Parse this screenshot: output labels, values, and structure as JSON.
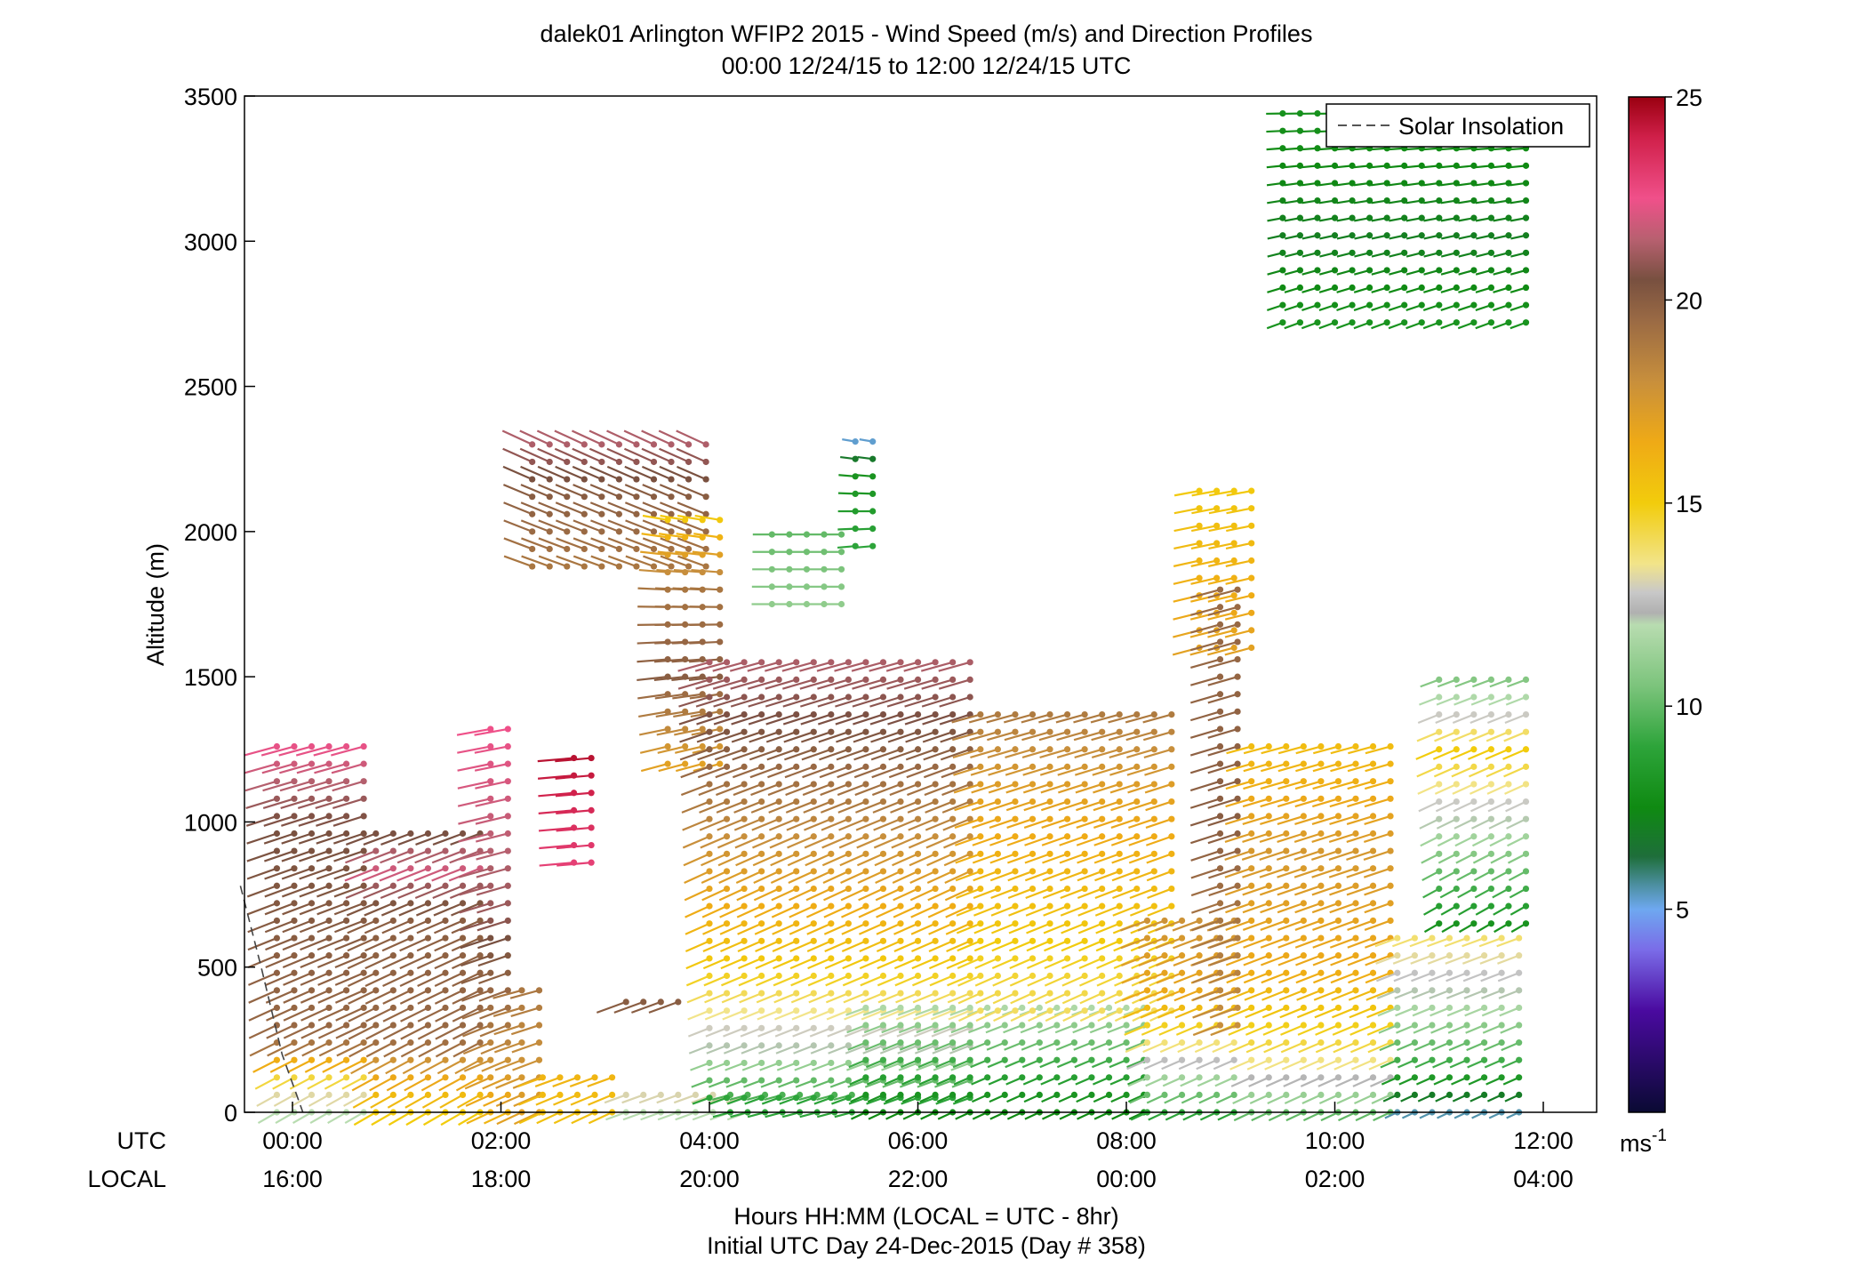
{
  "chart_data": {
    "type": "wind_barb_profile",
    "title": "dalek01 Arlington WFIP2 2015 - Wind Speed (m/s) and Direction Profiles",
    "subtitle": "00:00 12/24/15 to 12:00 12/24/15  UTC",
    "ylabel": "Altitude (m)",
    "xlabel": "Hours HH:MM  (LOCAL = UTC - 8hr)",
    "xlabel2": "Initial UTC Day 24-Dec-2015 (Day # 358)",
    "row_labels": {
      "utc": "UTC",
      "local": "LOCAL"
    },
    "xlim_hours_utc": [
      -0.5,
      12.5
    ],
    "ylim": [
      0,
      3500
    ],
    "y_ticks": [
      {
        "value": 0,
        "label": "0"
      },
      {
        "value": 500,
        "label": "500"
      },
      {
        "value": 1000,
        "label": "1000"
      },
      {
        "value": 1500,
        "label": "1500"
      },
      {
        "value": 2000,
        "label": "2000"
      },
      {
        "value": 2500,
        "label": "2500"
      },
      {
        "value": 3000,
        "label": "3000"
      },
      {
        "value": 3500,
        "label": "3500"
      }
    ],
    "x_ticks": [
      {
        "hour": 0,
        "utc": "00:00",
        "local": "16:00"
      },
      {
        "hour": 2,
        "utc": "02:00",
        "local": "18:00"
      },
      {
        "hour": 4,
        "utc": "04:00",
        "local": "20:00"
      },
      {
        "hour": 6,
        "utc": "06:00",
        "local": "22:00"
      },
      {
        "hour": 8,
        "utc": "08:00",
        "local": "00:00"
      },
      {
        "hour": 10,
        "utc": "10:00",
        "local": "02:00"
      },
      {
        "hour": 12,
        "utc": "12:00",
        "local": "04:00"
      }
    ],
    "legend": {
      "label": "Solar Insolation",
      "position": "top-right"
    },
    "solar_insolation_line": [
      {
        "hour": -0.5,
        "alt": 780
      },
      {
        "hour": -0.3,
        "alt": 500
      },
      {
        "hour": -0.1,
        "alt": 200
      },
      {
        "hour": 0.1,
        "alt": 0
      }
    ],
    "colorbar": {
      "unit": "ms",
      "unit_exponent": "-1",
      "ticks": [
        5,
        10,
        15,
        20,
        25
      ],
      "range": [
        0,
        25
      ],
      "stops": [
        {
          "v": 0,
          "color": "#0a0a33"
        },
        {
          "v": 2.5,
          "color": "#4a0aa0"
        },
        {
          "v": 4,
          "color": "#7a6ce8"
        },
        {
          "v": 5,
          "color": "#6ea8f0"
        },
        {
          "v": 5.6,
          "color": "#4c8fa0"
        },
        {
          "v": 6.3,
          "color": "#1e6e3a"
        },
        {
          "v": 7.5,
          "color": "#0f8a12"
        },
        {
          "v": 9,
          "color": "#2da43a"
        },
        {
          "v": 10.5,
          "color": "#7cc47c"
        },
        {
          "v": 12,
          "color": "#b8dcb0"
        },
        {
          "v": 12.3,
          "color": "#b0b0b0"
        },
        {
          "v": 12.8,
          "color": "#c8c8c8"
        },
        {
          "v": 13.5,
          "color": "#f2e48a"
        },
        {
          "v": 15,
          "color": "#f2cc0c"
        },
        {
          "v": 16.5,
          "color": "#efaa16"
        },
        {
          "v": 18,
          "color": "#c88f3c"
        },
        {
          "v": 19.5,
          "color": "#9a6a44"
        },
        {
          "v": 20.5,
          "color": "#785040"
        },
        {
          "v": 21.5,
          "color": "#b86070"
        },
        {
          "v": 22.5,
          "color": "#f0508a"
        },
        {
          "v": 24,
          "color": "#d0204a"
        },
        {
          "v": 25,
          "color": "#9a0010"
        }
      ]
    },
    "time_step_hours": 0.1667,
    "alt_step_m": 60,
    "profiles": [
      {
        "t0": -0.15,
        "t1": 0.8,
        "a0": 0,
        "a1": 1280,
        "speed": [
          [
            0,
            12
          ],
          [
            150,
            15
          ],
          [
            250,
            19.5
          ],
          [
            600,
            20
          ],
          [
            1000,
            20.5
          ],
          [
            1150,
            21.5
          ],
          [
            1280,
            22.5
          ]
        ],
        "dir": [
          [
            0,
            240
          ],
          [
            300,
            245
          ],
          [
            1280,
            255
          ]
        ]
      },
      {
        "t0": 0.8,
        "t1": 1.9,
        "a0": 0,
        "a1": 1000,
        "speed": [
          [
            0,
            15
          ],
          [
            150,
            17
          ],
          [
            250,
            19.5
          ],
          [
            700,
            20
          ],
          [
            850,
            22
          ],
          [
            1000,
            20
          ]
        ],
        "dir": [
          [
            0,
            240
          ],
          [
            1000,
            250
          ]
        ]
      },
      {
        "t0": 1.9,
        "t1": 2.1,
        "a0": 0,
        "a1": 1330,
        "speed": [
          [
            0,
            16
          ],
          [
            300,
            19
          ],
          [
            700,
            21
          ],
          [
            1330,
            22.5
          ]
        ],
        "dir": [
          [
            0,
            245
          ],
          [
            1330,
            260
          ]
        ]
      },
      {
        "t0": 2.2,
        "t1": 2.4,
        "a0": 0,
        "a1": 430,
        "speed": [
          [
            0,
            17
          ],
          [
            430,
            19
          ]
        ],
        "dir": [
          [
            0,
            245
          ],
          [
            430,
            255
          ]
        ]
      },
      {
        "t0": 2.4,
        "t1": 3.2,
        "a0": 0,
        "a1": 120,
        "speed": [
          [
            0,
            15.5
          ],
          [
            120,
            16
          ]
        ],
        "dir": [
          [
            0,
            245
          ],
          [
            120,
            250
          ]
        ]
      },
      {
        "t0": 2.7,
        "t1": 2.9,
        "a0": 860,
        "a1": 1240,
        "speed": [
          [
            860,
            23
          ],
          [
            1240,
            24.5
          ]
        ],
        "dir": [
          [
            860,
            265
          ],
          [
            1240,
            265
          ]
        ]
      },
      {
        "t0": 2.3,
        "t1": 4.0,
        "a0": 1880,
        "a1": 2320,
        "speed": [
          [
            1880,
            19
          ],
          [
            2120,
            20
          ],
          [
            2320,
            21.5
          ]
        ],
        "dir": [
          [
            1880,
            290
          ],
          [
            2320,
            295
          ]
        ]
      },
      {
        "t0": 3.2,
        "t1": 3.8,
        "a0": 380,
        "a1": 430,
        "speed": [
          [
            380,
            20
          ],
          [
            430,
            19
          ]
        ],
        "dir": [
          [
            380,
            250
          ],
          [
            430,
            255
          ]
        ]
      },
      {
        "t0": 3.2,
        "t1": 4.5,
        "a0": 0,
        "a1": 110,
        "speed": [
          [
            0,
            12
          ],
          [
            110,
            14
          ]
        ],
        "dir": [
          [
            0,
            250
          ],
          [
            110,
            250
          ]
        ]
      },
      {
        "t0": 3.6,
        "t1": 4.2,
        "a0": 1200,
        "a1": 2050,
        "speed": [
          [
            1200,
            17
          ],
          [
            1500,
            20
          ],
          [
            1800,
            19
          ],
          [
            2050,
            15
          ]
        ],
        "dir": [
          [
            1200,
            255
          ],
          [
            2050,
            280
          ]
        ]
      },
      {
        "t0": 4.2,
        "t1": 5.5,
        "a0": 0,
        "a1": 100,
        "speed": [
          [
            0,
            9
          ],
          [
            100,
            10
          ]
        ],
        "dir": [
          [
            0,
            255
          ],
          [
            100,
            255
          ]
        ]
      },
      {
        "t0": 4.0,
        "t1": 6.6,
        "a0": 50,
        "a1": 1600,
        "speed": [
          [
            50,
            9
          ],
          [
            250,
            12.5
          ],
          [
            500,
            15
          ],
          [
            800,
            17
          ],
          [
            1100,
            19
          ],
          [
            1350,
            20.5
          ],
          [
            1600,
            21.5
          ]
        ],
        "dir": [
          [
            50,
            250
          ],
          [
            800,
            245
          ],
          [
            1600,
            255
          ]
        ]
      },
      {
        "t0": 4.6,
        "t1": 5.4,
        "a0": 1750,
        "a1": 2000,
        "speed": [
          [
            1750,
            11
          ],
          [
            2000,
            10
          ]
        ],
        "dir": [
          [
            1750,
            270
          ],
          [
            2000,
            270
          ]
        ]
      },
      {
        "t0": 5.4,
        "t1": 5.7,
        "a0": 1950,
        "a1": 2320,
        "speed": [
          [
            1950,
            9
          ],
          [
            2200,
            8
          ],
          [
            2320,
            5
          ]
        ],
        "dir": [
          [
            1950,
            265
          ],
          [
            2320,
            280
          ]
        ]
      },
      {
        "t0": 5.5,
        "t1": 8.2,
        "a0": 0,
        "a1": 380,
        "speed": [
          [
            0,
            7.5
          ],
          [
            150,
            9
          ],
          [
            380,
            12
          ]
        ],
        "dir": [
          [
            0,
            245
          ],
          [
            380,
            250
          ]
        ]
      },
      {
        "t0": 6.6,
        "t1": 8.6,
        "a0": 350,
        "a1": 1400,
        "speed": [
          [
            350,
            14
          ],
          [
            700,
            15.5
          ],
          [
            1100,
            17
          ],
          [
            1400,
            19
          ]
        ],
        "dir": [
          [
            350,
            245
          ],
          [
            1400,
            255
          ]
        ]
      },
      {
        "t0": 8.2,
        "t1": 9.1,
        "a0": 0,
        "a1": 700,
        "speed": [
          [
            0,
            9
          ],
          [
            200,
            13
          ],
          [
            400,
            16.5
          ],
          [
            700,
            18
          ]
        ],
        "dir": [
          [
            0,
            245
          ],
          [
            700,
            250
          ]
        ]
      },
      {
        "t0": 8.7,
        "t1": 9.3,
        "a0": 1600,
        "a1": 2180,
        "speed": [
          [
            1600,
            17
          ],
          [
            1900,
            16
          ],
          [
            2180,
            15
          ]
        ],
        "dir": [
          [
            1600,
            255
          ],
          [
            2180,
            260
          ]
        ]
      },
      {
        "t0": 8.9,
        "t1": 9.1,
        "a0": 300,
        "a1": 1800,
        "speed": [
          [
            300,
            18
          ],
          [
            1000,
            20
          ],
          [
            1800,
            19.5
          ]
        ],
        "dir": [
          [
            300,
            250
          ],
          [
            1800,
            255
          ]
        ]
      },
      {
        "t0": 9.2,
        "t1": 10.6,
        "a0": 0,
        "a1": 1300,
        "speed": [
          [
            0,
            10
          ],
          [
            200,
            14
          ],
          [
            500,
            16.5
          ],
          [
            900,
            17.5
          ],
          [
            1300,
            15.5
          ]
        ],
        "dir": [
          [
            0,
            245
          ],
          [
            1300,
            255
          ]
        ]
      },
      {
        "t0": 10.6,
        "t1": 11.9,
        "a0": 0,
        "a1": 620,
        "speed": [
          [
            0,
            5.5
          ],
          [
            150,
            9
          ],
          [
            350,
            11.5
          ],
          [
            620,
            14
          ]
        ],
        "dir": [
          [
            0,
            245
          ],
          [
            620,
            250
          ]
        ]
      },
      {
        "t0": 11.0,
        "t1": 11.9,
        "a0": 650,
        "a1": 1530,
        "speed": [
          [
            650,
            8
          ],
          [
            1000,
            12
          ],
          [
            1250,
            15
          ],
          [
            1530,
            10
          ]
        ],
        "dir": [
          [
            650,
            240
          ],
          [
            1530,
            250
          ]
        ]
      },
      {
        "t0": 9.5,
        "t1": 11.9,
        "a0": 2720,
        "a1": 3480,
        "speed": [
          [
            2720,
            8
          ],
          [
            3000,
            7
          ],
          [
            3250,
            7.5
          ],
          [
            3480,
            8
          ]
        ],
        "dir": [
          [
            2720,
            250
          ],
          [
            3480,
            270
          ]
        ]
      }
    ]
  }
}
